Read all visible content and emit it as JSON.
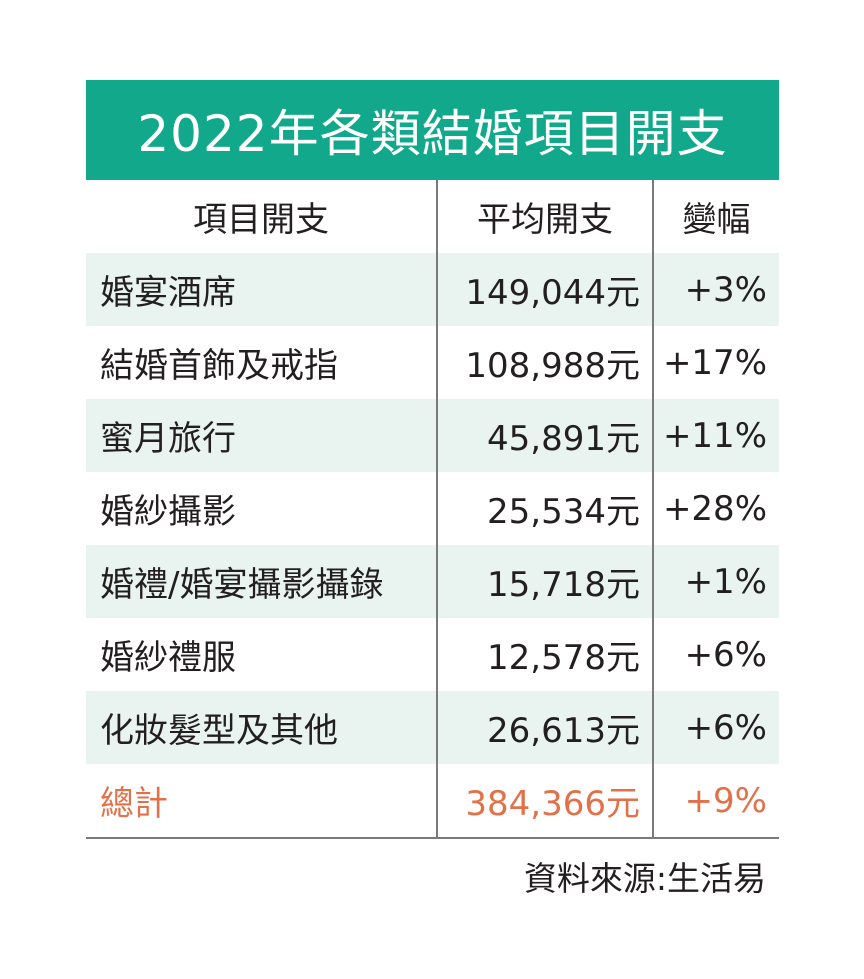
{
  "chart_data": {
    "type": "table",
    "title": "2022年各類結婚項目開支",
    "columns": [
      "項目開支",
      "平均開支",
      "變幅"
    ],
    "rows": [
      {
        "item": "婚宴酒席",
        "amount": "149,044元",
        "change": "+3%"
      },
      {
        "item": "結婚首飾及戒指",
        "amount": "108,988元",
        "change": "+17%"
      },
      {
        "item": "蜜月旅行",
        "amount": "45,891元",
        "change": "+11%"
      },
      {
        "item": "婚紗攝影",
        "amount": "25,534元",
        "change": "+28%"
      },
      {
        "item": "婚禮/婚宴攝影攝錄",
        "amount": "15,718元",
        "change": "+1%"
      },
      {
        "item": "婚紗禮服",
        "amount": "12,578元",
        "change": "+6%"
      },
      {
        "item": "化妝髮型及其他",
        "amount": "26,613元",
        "change": "+6%"
      }
    ],
    "total": {
      "item": "總計",
      "amount": "384,366元",
      "change": "+9%"
    },
    "source": "資料來源:生活易"
  },
  "colors": {
    "header_bg": "#12a88c",
    "row_shade": "#e9f4f0",
    "total_text": "#e2714a",
    "divider": "#7a7a7a"
  }
}
